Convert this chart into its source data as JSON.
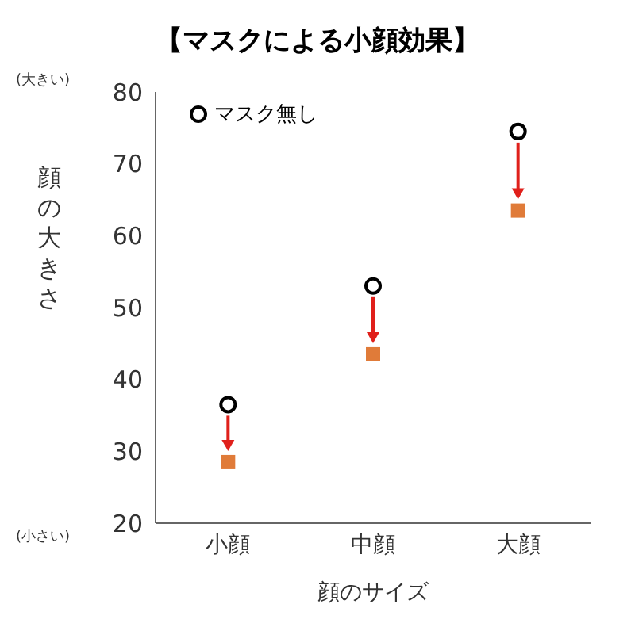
{
  "chart_data": {
    "type": "scatter",
    "title": "【マスクによる小顔効果】",
    "xlabel": "顔のサイズ",
    "ylabel": "顔の大きさ",
    "annotations": [
      "(大きい)",
      "(小さい)"
    ],
    "categories": [
      "小顔",
      "中顔",
      "大顔"
    ],
    "series": [
      {
        "name": "マスク無し",
        "color": "#000000",
        "marker": "circle",
        "values": [
          36.5,
          53,
          74.5
        ]
      },
      {
        "color": "#e07b39",
        "marker": "square",
        "values": [
          28.5,
          43.5,
          63.5
        ]
      }
    ],
    "ylim": [
      20,
      80
    ],
    "yticks": [
      20,
      30,
      40,
      50,
      60,
      70,
      80
    ],
    "grid": false,
    "legend": "top left"
  }
}
